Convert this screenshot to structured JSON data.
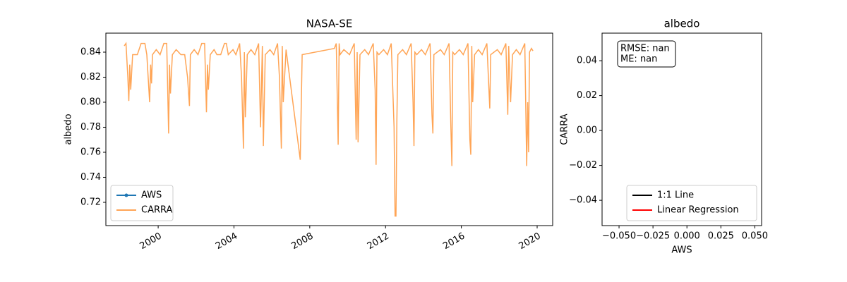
{
  "chart_data": [
    {
      "type": "line",
      "title": "NASA-SE",
      "ylabel": "albedo",
      "xlim": [
        1997.24,
        2020.82
      ],
      "xticks": [
        2000,
        2004,
        2008,
        2012,
        2016,
        2020
      ],
      "xtick_rotation": 30,
      "ylim": [
        0.7014,
        0.8552
      ],
      "yticks": [
        0.72,
        0.74,
        0.76,
        0.78,
        {
          "value": 0.8,
          "label": "0.80"
        },
        0.82,
        0.84
      ],
      "legend": "lower left",
      "series": [
        {
          "name": "AWS",
          "color": "#1f77b4",
          "marker": "o",
          "x": [],
          "values": []
        },
        {
          "name": "CARRA",
          "color": "#ff7f0e",
          "alpha": 0.7,
          "x": [
            1998.21,
            1998.3,
            1998.4,
            1998.45,
            1998.5,
            1998.55,
            1998.65,
            1998.9,
            1999.1,
            1999.3,
            1999.4,
            1999.55,
            1999.6,
            1999.65,
            1999.7,
            1999.9,
            2000.1,
            2000.3,
            2000.45,
            2000.55,
            2000.6,
            2000.65,
            2000.75,
            2000.95,
            2001.2,
            2001.4,
            2001.55,
            2001.65,
            2001.7,
            2001.9,
            2002.1,
            2002.3,
            2002.45,
            2002.55,
            2002.6,
            2002.65,
            2002.75,
            2002.95,
            2003.1,
            2003.3,
            2003.5,
            2003.6,
            2003.7,
            2003.95,
            2004.1,
            2004.3,
            2004.4,
            2004.5,
            2004.55,
            2004.6,
            2004.7,
            2004.9,
            2005.1,
            2005.3,
            2005.4,
            2005.5,
            2005.55,
            2005.65,
            2005.9,
            2006.1,
            2006.3,
            2006.4,
            2006.5,
            2006.55,
            2006.6,
            2006.75,
            2007.5,
            2007.6,
            2009.3,
            2009.4,
            2009.5,
            2009.55,
            2009.6,
            2009.8,
            2010.1,
            2010.35,
            2010.45,
            2010.5,
            2010.55,
            2010.65,
            2010.9,
            2011.1,
            2011.35,
            2011.45,
            2011.5,
            2011.55,
            2011.65,
            2011.9,
            2012.1,
            2012.3,
            2012.45,
            2012.5,
            2012.55,
            2012.6,
            2012.65,
            2012.9,
            2013.1,
            2013.35,
            2013.45,
            2013.5,
            2013.55,
            2013.65,
            2013.9,
            2014.1,
            2014.35,
            2014.45,
            2014.5,
            2014.55,
            2014.9,
            2015.1,
            2015.35,
            2015.45,
            2015.5,
            2015.55,
            2015.65,
            2015.9,
            2016.1,
            2016.35,
            2016.45,
            2016.5,
            2016.55,
            2016.6,
            2016.7,
            2016.9,
            2017.1,
            2017.35,
            2017.5,
            2017.55,
            2017.9,
            2018.1,
            2018.35,
            2018.45,
            2018.5,
            2018.6,
            2018.7,
            2018.9,
            2019.1,
            2019.35,
            2019.45,
            2019.5,
            2019.55,
            2019.6,
            2019.7,
            2019.78
          ],
          "values": [
            0.845,
            0.847,
            0.82,
            0.801,
            0.83,
            0.81,
            0.838,
            0.838,
            0.847,
            0.847,
            0.838,
            0.8,
            0.83,
            0.815,
            0.838,
            0.842,
            0.838,
            0.847,
            0.847,
            0.775,
            0.83,
            0.807,
            0.838,
            0.842,
            0.838,
            0.838,
            0.82,
            0.797,
            0.838,
            0.842,
            0.838,
            0.847,
            0.847,
            0.792,
            0.83,
            0.81,
            0.838,
            0.842,
            0.838,
            0.838,
            0.847,
            0.847,
            0.838,
            0.842,
            0.838,
            0.847,
            0.82,
            0.763,
            0.84,
            0.788,
            0.838,
            0.842,
            0.838,
            0.847,
            0.78,
            0.845,
            0.765,
            0.838,
            0.842,
            0.838,
            0.847,
            0.82,
            0.763,
            0.845,
            0.8,
            0.842,
            0.754,
            0.838,
            0.843,
            0.847,
            0.766,
            0.847,
            0.838,
            0.842,
            0.838,
            0.847,
            0.77,
            0.84,
            0.768,
            0.838,
            0.842,
            0.838,
            0.847,
            0.81,
            0.75,
            0.84,
            0.838,
            0.842,
            0.838,
            0.847,
            0.78,
            0.709,
            0.709,
            0.786,
            0.838,
            0.842,
            0.838,
            0.847,
            0.8,
            0.765,
            0.84,
            0.838,
            0.842,
            0.838,
            0.847,
            0.79,
            0.775,
            0.838,
            0.842,
            0.838,
            0.847,
            0.78,
            0.749,
            0.84,
            0.838,
            0.842,
            0.838,
            0.847,
            0.77,
            0.758,
            0.845,
            0.8,
            0.838,
            0.842,
            0.838,
            0.847,
            0.795,
            0.838,
            0.842,
            0.838,
            0.847,
            0.79,
            0.845,
            0.8,
            0.838,
            0.842,
            0.838,
            0.847,
            0.749,
            0.8,
            0.76,
            0.84,
            0.843,
            0.841
          ]
        }
      ]
    },
    {
      "type": "scatter",
      "title": "albedo",
      "xlabel": "AWS",
      "ylabel": "CARRA",
      "xlim": [
        -0.0625,
        0.055
      ],
      "xticks": [
        {
          "value": -0.05,
          "label": "−0.050"
        },
        {
          "value": -0.025,
          "label": "−0.025"
        },
        {
          "value": 0,
          "label": "0.000"
        },
        0.025,
        {
          "value": 0.05,
          "label": "0.050"
        }
      ],
      "ylim": [
        -0.0545,
        0.0558
      ],
      "yticks": [
        {
          "value": -0.04,
          "label": "−0.04"
        },
        {
          "value": -0.02,
          "label": "−0.02"
        },
        {
          "value": 0,
          "label": "0.00"
        },
        0.02,
        0.04
      ],
      "annotation": [
        "RMSE: nan",
        "ME: nan"
      ],
      "legend": "lower right",
      "series": [
        {
          "name": "1:1 Line",
          "color": "#000000",
          "x": [],
          "values": []
        },
        {
          "name": "Linear Regression",
          "color": "#ff0000",
          "x": [],
          "values": []
        }
      ]
    }
  ]
}
